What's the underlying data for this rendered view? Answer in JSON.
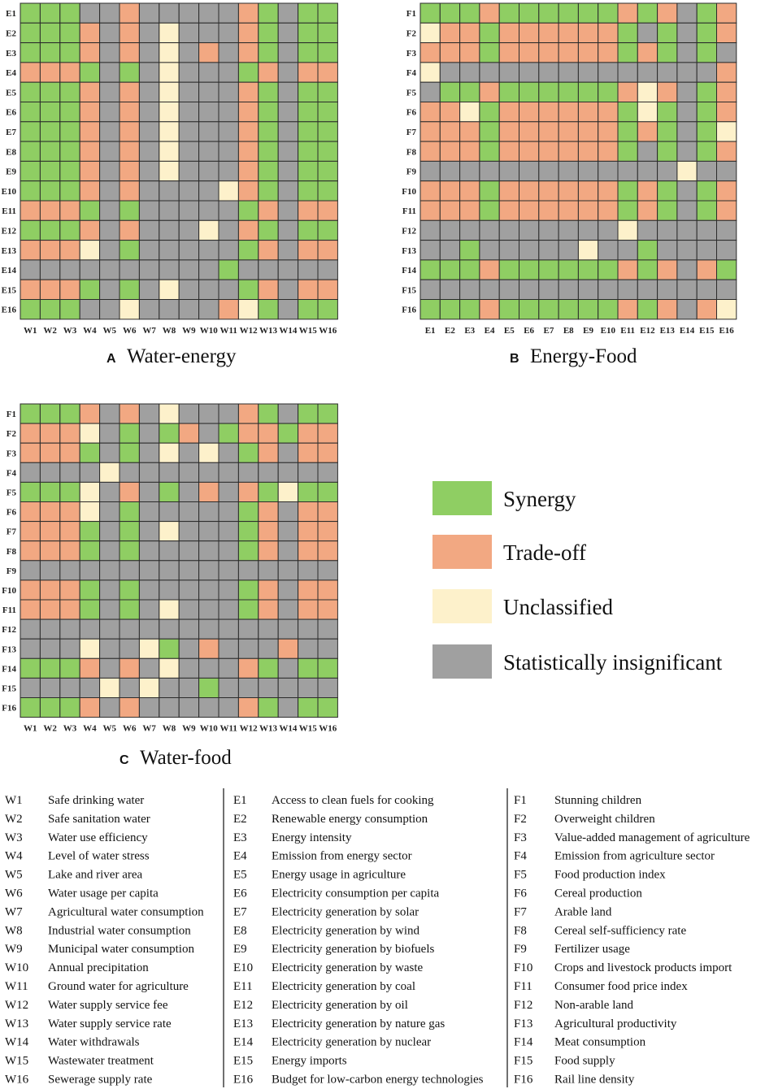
{
  "colors": {
    "S": "#8fce63",
    "T": "#f2a882",
    "U": "#fdf1cb",
    "N": "#a0a0a0"
  },
  "chart_data": [
    {
      "type": "heatmap",
      "panel": "A",
      "title": "Water-energy",
      "rows": [
        "E1",
        "E2",
        "E3",
        "E4",
        "E5",
        "E6",
        "E7",
        "E8",
        "E9",
        "E10",
        "E11",
        "E12",
        "E13",
        "E14",
        "E15",
        "E16"
      ],
      "columns": [
        "W1",
        "W2",
        "W3",
        "W4",
        "W5",
        "W6",
        "W7",
        "W8",
        "W9",
        "W10",
        "W11",
        "W12",
        "W13",
        "W14",
        "W15",
        "W16"
      ],
      "legend_codes": {
        "S": "Synergy",
        "T": "Trade-off",
        "U": "Unclassified",
        "N": "Statistically insignificant"
      },
      "values": [
        [
          "S",
          "S",
          "S",
          "N",
          "N",
          "T",
          "N",
          "N",
          "N",
          "N",
          "N",
          "T",
          "S",
          "N",
          "S",
          "S"
        ],
        [
          "S",
          "S",
          "S",
          "T",
          "N",
          "T",
          "N",
          "U",
          "N",
          "N",
          "N",
          "T",
          "S",
          "N",
          "S",
          "S"
        ],
        [
          "S",
          "S",
          "S",
          "T",
          "N",
          "T",
          "N",
          "U",
          "N",
          "T",
          "N",
          "T",
          "S",
          "N",
          "S",
          "S"
        ],
        [
          "T",
          "T",
          "T",
          "S",
          "N",
          "S",
          "N",
          "U",
          "N",
          "N",
          "N",
          "S",
          "T",
          "N",
          "T",
          "T"
        ],
        [
          "S",
          "S",
          "S",
          "T",
          "N",
          "T",
          "N",
          "U",
          "N",
          "N",
          "N",
          "T",
          "S",
          "N",
          "S",
          "S"
        ],
        [
          "S",
          "S",
          "S",
          "T",
          "N",
          "T",
          "N",
          "U",
          "N",
          "N",
          "N",
          "T",
          "S",
          "N",
          "S",
          "S"
        ],
        [
          "S",
          "S",
          "S",
          "T",
          "N",
          "T",
          "N",
          "U",
          "N",
          "N",
          "N",
          "T",
          "S",
          "N",
          "S",
          "S"
        ],
        [
          "S",
          "S",
          "S",
          "T",
          "N",
          "T",
          "N",
          "U",
          "N",
          "N",
          "N",
          "T",
          "S",
          "N",
          "S",
          "S"
        ],
        [
          "S",
          "S",
          "S",
          "T",
          "N",
          "T",
          "N",
          "U",
          "N",
          "N",
          "N",
          "T",
          "S",
          "N",
          "S",
          "S"
        ],
        [
          "S",
          "S",
          "S",
          "T",
          "N",
          "T",
          "N",
          "N",
          "N",
          "N",
          "U",
          "T",
          "S",
          "N",
          "S",
          "S"
        ],
        [
          "T",
          "T",
          "T",
          "S",
          "N",
          "S",
          "N",
          "N",
          "N",
          "N",
          "N",
          "S",
          "T",
          "N",
          "T",
          "T"
        ],
        [
          "S",
          "S",
          "S",
          "T",
          "N",
          "T",
          "N",
          "N",
          "N",
          "U",
          "N",
          "T",
          "S",
          "N",
          "S",
          "S"
        ],
        [
          "T",
          "T",
          "T",
          "U",
          "N",
          "S",
          "N",
          "N",
          "N",
          "N",
          "N",
          "S",
          "T",
          "N",
          "T",
          "T"
        ],
        [
          "N",
          "N",
          "N",
          "N",
          "N",
          "N",
          "N",
          "N",
          "N",
          "N",
          "S",
          "N",
          "N",
          "N",
          "N",
          "N"
        ],
        [
          "T",
          "T",
          "T",
          "S",
          "N",
          "S",
          "N",
          "U",
          "N",
          "N",
          "N",
          "S",
          "T",
          "N",
          "T",
          "T"
        ],
        [
          "S",
          "S",
          "S",
          "N",
          "N",
          "U",
          "N",
          "N",
          "N",
          "N",
          "T",
          "U",
          "S",
          "N",
          "S",
          "S"
        ]
      ]
    },
    {
      "type": "heatmap",
      "panel": "B",
      "title": "Energy-Food",
      "rows": [
        "F1",
        "F2",
        "F3",
        "F4",
        "F5",
        "F6",
        "F7",
        "F8",
        "F9",
        "F10",
        "F11",
        "F12",
        "F13",
        "F14",
        "F15",
        "F16"
      ],
      "columns": [
        "E1",
        "E2",
        "E3",
        "E4",
        "E5",
        "E6",
        "E7",
        "E8",
        "E9",
        "E10",
        "E11",
        "E12",
        "E13",
        "E14",
        "E15",
        "E16"
      ],
      "legend_codes": {
        "S": "Synergy",
        "T": "Trade-off",
        "U": "Unclassified",
        "N": "Statistically insignificant"
      },
      "values": [
        [
          "S",
          "S",
          "S",
          "T",
          "S",
          "S",
          "S",
          "S",
          "S",
          "S",
          "T",
          "S",
          "T",
          "N",
          "S",
          "T"
        ],
        [
          "U",
          "T",
          "T",
          "S",
          "T",
          "T",
          "T",
          "T",
          "T",
          "T",
          "S",
          "N",
          "S",
          "N",
          "S",
          "T"
        ],
        [
          "T",
          "T",
          "T",
          "S",
          "T",
          "T",
          "T",
          "T",
          "T",
          "T",
          "S",
          "T",
          "S",
          "N",
          "S",
          "N"
        ],
        [
          "U",
          "N",
          "N",
          "N",
          "N",
          "N",
          "N",
          "N",
          "N",
          "N",
          "N",
          "N",
          "N",
          "N",
          "N",
          "T"
        ],
        [
          "N",
          "S",
          "S",
          "T",
          "S",
          "S",
          "S",
          "S",
          "S",
          "S",
          "T",
          "U",
          "T",
          "N",
          "S",
          "T"
        ],
        [
          "T",
          "T",
          "U",
          "S",
          "T",
          "T",
          "T",
          "T",
          "T",
          "T",
          "S",
          "U",
          "S",
          "N",
          "S",
          "T"
        ],
        [
          "T",
          "T",
          "T",
          "S",
          "T",
          "T",
          "T",
          "T",
          "T",
          "T",
          "S",
          "T",
          "S",
          "N",
          "S",
          "U"
        ],
        [
          "T",
          "T",
          "T",
          "S",
          "T",
          "T",
          "T",
          "T",
          "T",
          "T",
          "S",
          "N",
          "S",
          "N",
          "S",
          "T"
        ],
        [
          "N",
          "N",
          "N",
          "N",
          "N",
          "N",
          "N",
          "N",
          "N",
          "N",
          "N",
          "N",
          "N",
          "U",
          "N",
          "N"
        ],
        [
          "T",
          "T",
          "T",
          "S",
          "T",
          "T",
          "T",
          "T",
          "T",
          "T",
          "S",
          "T",
          "S",
          "N",
          "S",
          "T"
        ],
        [
          "T",
          "T",
          "T",
          "S",
          "T",
          "T",
          "T",
          "T",
          "T",
          "T",
          "S",
          "T",
          "S",
          "N",
          "S",
          "T"
        ],
        [
          "N",
          "N",
          "N",
          "N",
          "N",
          "N",
          "N",
          "N",
          "N",
          "N",
          "U",
          "N",
          "N",
          "N",
          "N",
          "N"
        ],
        [
          "N",
          "N",
          "S",
          "N",
          "N",
          "N",
          "N",
          "N",
          "U",
          "N",
          "N",
          "S",
          "N",
          "N",
          "N",
          "N"
        ],
        [
          "S",
          "S",
          "S",
          "T",
          "S",
          "S",
          "S",
          "S",
          "S",
          "S",
          "T",
          "S",
          "T",
          "N",
          "T",
          "S"
        ],
        [
          "N",
          "N",
          "N",
          "N",
          "N",
          "N",
          "N",
          "N",
          "N",
          "N",
          "N",
          "N",
          "N",
          "N",
          "N",
          "N"
        ],
        [
          "S",
          "S",
          "S",
          "T",
          "S",
          "S",
          "S",
          "S",
          "S",
          "S",
          "T",
          "S",
          "T",
          "N",
          "T",
          "U"
        ]
      ]
    },
    {
      "type": "heatmap",
      "panel": "C",
      "title": "Water-food",
      "rows": [
        "F1",
        "F2",
        "F3",
        "F4",
        "F5",
        "F6",
        "F7",
        "F8",
        "F9",
        "F10",
        "F11",
        "F12",
        "F13",
        "F14",
        "F15",
        "F16"
      ],
      "columns": [
        "W1",
        "W2",
        "W3",
        "W4",
        "W5",
        "W6",
        "W7",
        "W8",
        "W9",
        "W10",
        "W11",
        "W12",
        "W13",
        "W14",
        "W15",
        "W16"
      ],
      "legend_codes": {
        "S": "Synergy",
        "T": "Trade-off",
        "U": "Unclassified",
        "N": "Statistically insignificant"
      },
      "values": [
        [
          "S",
          "S",
          "S",
          "T",
          "N",
          "T",
          "N",
          "U",
          "N",
          "N",
          "N",
          "T",
          "S",
          "N",
          "S",
          "S"
        ],
        [
          "T",
          "T",
          "T",
          "U",
          "N",
          "S",
          "N",
          "S",
          "T",
          "N",
          "S",
          "T",
          "T",
          "S",
          "T",
          "T"
        ],
        [
          "T",
          "T",
          "T",
          "S",
          "N",
          "S",
          "N",
          "U",
          "N",
          "U",
          "N",
          "S",
          "T",
          "N",
          "T",
          "T"
        ],
        [
          "N",
          "N",
          "N",
          "N",
          "U",
          "N",
          "N",
          "N",
          "N",
          "N",
          "N",
          "N",
          "N",
          "N",
          "N",
          "N"
        ],
        [
          "S",
          "S",
          "S",
          "U",
          "N",
          "T",
          "N",
          "S",
          "N",
          "T",
          "N",
          "T",
          "S",
          "U",
          "S",
          "S"
        ],
        [
          "T",
          "T",
          "T",
          "U",
          "N",
          "S",
          "N",
          "N",
          "N",
          "N",
          "N",
          "S",
          "T",
          "N",
          "T",
          "T"
        ],
        [
          "T",
          "T",
          "T",
          "S",
          "N",
          "S",
          "N",
          "U",
          "N",
          "N",
          "N",
          "S",
          "T",
          "N",
          "T",
          "T"
        ],
        [
          "T",
          "T",
          "T",
          "S",
          "N",
          "S",
          "N",
          "N",
          "N",
          "N",
          "N",
          "S",
          "T",
          "N",
          "T",
          "T"
        ],
        [
          "N",
          "N",
          "N",
          "N",
          "N",
          "N",
          "N",
          "N",
          "N",
          "N",
          "N",
          "N",
          "N",
          "N",
          "N",
          "N"
        ],
        [
          "T",
          "T",
          "T",
          "S",
          "N",
          "S",
          "N",
          "N",
          "N",
          "N",
          "N",
          "S",
          "T",
          "N",
          "T",
          "T"
        ],
        [
          "T",
          "T",
          "T",
          "S",
          "N",
          "S",
          "N",
          "U",
          "N",
          "N",
          "N",
          "S",
          "T",
          "N",
          "T",
          "T"
        ],
        [
          "N",
          "N",
          "N",
          "N",
          "N",
          "N",
          "N",
          "N",
          "N",
          "N",
          "N",
          "N",
          "N",
          "N",
          "N",
          "N"
        ],
        [
          "N",
          "N",
          "N",
          "U",
          "N",
          "N",
          "U",
          "S",
          "N",
          "T",
          "N",
          "N",
          "N",
          "T",
          "N",
          "N"
        ],
        [
          "S",
          "S",
          "S",
          "T",
          "N",
          "T",
          "N",
          "U",
          "N",
          "N",
          "N",
          "T",
          "S",
          "N",
          "S",
          "S"
        ],
        [
          "N",
          "N",
          "N",
          "N",
          "U",
          "N",
          "U",
          "N",
          "N",
          "S",
          "N",
          "N",
          "N",
          "N",
          "N",
          "N"
        ],
        [
          "S",
          "S",
          "S",
          "T",
          "N",
          "T",
          "N",
          "N",
          "N",
          "N",
          "N",
          "T",
          "S",
          "N",
          "S",
          "S"
        ]
      ]
    }
  ],
  "legend": [
    {
      "label": "Synergy",
      "code": "S"
    },
    {
      "label": "Trade-off",
      "code": "T"
    },
    {
      "label": "Unclassified",
      "code": "U"
    },
    {
      "label": "Statistically insignificant",
      "code": "N"
    }
  ],
  "key": {
    "water": [
      {
        "code": "W1",
        "name": "Safe drinking water"
      },
      {
        "code": "W2",
        "name": "Safe sanitation water"
      },
      {
        "code": "W3",
        "name": "Water use efficiency"
      },
      {
        "code": "W4",
        "name": "Level of water stress"
      },
      {
        "code": "W5",
        "name": "Lake and river area"
      },
      {
        "code": "W6",
        "name": "Water usage per capita"
      },
      {
        "code": "W7",
        "name": "Agricultural water consumption"
      },
      {
        "code": "W8",
        "name": "Industrial water consumption"
      },
      {
        "code": "W9",
        "name": "Municipal water consumption"
      },
      {
        "code": "W10",
        "name": "Annual precipitation"
      },
      {
        "code": "W11",
        "name": "Ground water for agriculture"
      },
      {
        "code": "W12",
        "name": "Water supply service fee"
      },
      {
        "code": "W13",
        "name": "Water supply service rate"
      },
      {
        "code": "W14",
        "name": "Water withdrawals"
      },
      {
        "code": "W15",
        "name": "Wastewater treatment"
      },
      {
        "code": "W16",
        "name": "Sewerage supply rate"
      }
    ],
    "energy": [
      {
        "code": "E1",
        "name": "Access to clean fuels for cooking"
      },
      {
        "code": "E2",
        "name": "Renewable energy consumption"
      },
      {
        "code": "E3",
        "name": "Energy intensity"
      },
      {
        "code": "E4",
        "name": "Emission from energy sector"
      },
      {
        "code": "E5",
        "name": "Energy usage in agriculture"
      },
      {
        "code": "E6",
        "name": "Electricity consumption per capita"
      },
      {
        "code": "E7",
        "name": "Electricity generation by solar"
      },
      {
        "code": "E8",
        "name": "Electricity generation by wind"
      },
      {
        "code": "E9",
        "name": "Electricity generation by biofuels"
      },
      {
        "code": "E10",
        "name": "Electricity generation by waste"
      },
      {
        "code": "E11",
        "name": "Electricity generation by coal"
      },
      {
        "code": "E12",
        "name": "Electricity generation by oil"
      },
      {
        "code": "E13",
        "name": "Electricity generation by nature gas"
      },
      {
        "code": "E14",
        "name": "Electricity generation by nuclear"
      },
      {
        "code": "E15",
        "name": "Energy imports"
      },
      {
        "code": "E16",
        "name": "Budget for low-carbon energy technologies"
      }
    ],
    "food": [
      {
        "code": "F1",
        "name": "Stunning children"
      },
      {
        "code": "F2",
        "name": "Overweight children"
      },
      {
        "code": "F3",
        "name": "Value-added management of agriculture"
      },
      {
        "code": "F4",
        "name": "Emission from agriculture sector"
      },
      {
        "code": "F5",
        "name": "Food production index"
      },
      {
        "code": "F6",
        "name": "Cereal production"
      },
      {
        "code": "F7",
        "name": "Arable land"
      },
      {
        "code": "F8",
        "name": "Cereal self-sufficiency rate"
      },
      {
        "code": "F9",
        "name": "Fertilizer usage"
      },
      {
        "code": "F10",
        "name": "Crops and livestock products import"
      },
      {
        "code": "F11",
        "name": "Consumer food price index"
      },
      {
        "code": "F12",
        "name": "Non-arable land"
      },
      {
        "code": "F13",
        "name": "Agricultural productivity"
      },
      {
        "code": "F14",
        "name": "Meat consumption"
      },
      {
        "code": "F15",
        "name": "Food supply"
      },
      {
        "code": "F16",
        "name": "Rail line density"
      }
    ]
  }
}
